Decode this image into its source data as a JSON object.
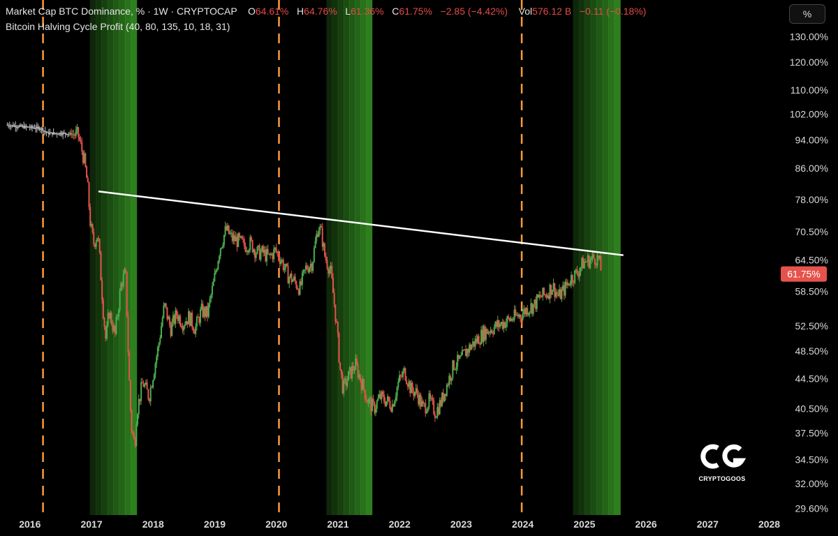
{
  "header": {
    "symbol": "Market Cap BTC Dominance, % · 1W · CRYPTOCAP",
    "o_label": "O",
    "o_value": "64.61%",
    "h_label": "H",
    "h_value": "64.76%",
    "l_label": "L",
    "l_value": "61.36%",
    "c_label": "C",
    "c_value": "61.75%",
    "change": "−2.85 (−4.42%)",
    "vol_label": "Vol",
    "vol_value": "576.12 B",
    "vol_change": "−0.11 (−0.18%)",
    "indicator": "Bitcoin Halving Cycle Profit (40, 80, 135, 10, 18, 31)"
  },
  "scale_button": "%",
  "logo": {
    "name": "CRYPTOGOOS",
    "mark": "CG"
  },
  "colors": {
    "background": "#000000",
    "up": "#4caf50",
    "down": "#e5534b",
    "halving_line": "#ff9a3c",
    "trendline": "#ffffff",
    "profit_zone": "#3fae2a",
    "last_price_badge": "#e5534b"
  },
  "chart_data": {
    "type": "line",
    "title": "",
    "xlabel": "",
    "ylabel": "",
    "y_scale": "log",
    "xlim": [
      2015.9,
      2028.3
    ],
    "ylim": [
      29.0,
      133.0
    ],
    "y_ticks": [
      "130.00%",
      "120.00%",
      "110.00%",
      "102.00%",
      "94.00%",
      "86.00%",
      "78.00%",
      "70.50%",
      "64.50%",
      "58.50%",
      "52.50%",
      "48.50%",
      "44.50%",
      "40.50%",
      "37.50%",
      "34.50%",
      "32.00%",
      "29.60%"
    ],
    "y_tick_values": [
      130,
      120,
      110,
      102,
      94,
      86,
      78,
      70.5,
      64.5,
      58.5,
      52.5,
      48.5,
      44.5,
      40.5,
      37.5,
      34.5,
      32,
      29.6
    ],
    "x_ticks": [
      "2016",
      "2017",
      "2018",
      "2019",
      "2020",
      "2021",
      "2022",
      "2023",
      "2024",
      "2025",
      "2026",
      "2027",
      "2028"
    ],
    "x_tick_values": [
      2016,
      2017,
      2018,
      2019,
      2020,
      2021,
      2022,
      2023,
      2024,
      2025,
      2026,
      2027,
      2028
    ],
    "last_price_label": "61.75%",
    "last_price": 61.75,
    "halving_dates": [
      2016.53,
      2020.36,
      2024.3
    ],
    "profit_zones": [
      {
        "start": 2017.29,
        "end": 2018.05
      },
      {
        "start": 2021.13,
        "end": 2021.87
      },
      {
        "start": 2025.13,
        "end": 2025.9
      }
    ],
    "trendline": {
      "x": [
        2017.43,
        2025.95
      ],
      "y": [
        80.0,
        65.5
      ]
    },
    "series": [
      {
        "x": [
          2015.95,
          2016.2,
          2016.5,
          2016.6,
          2016.9,
          2017.1,
          2017.2,
          2017.25,
          2017.3,
          2017.35,
          2017.42,
          2017.5,
          2017.55,
          2017.6,
          2017.7,
          2017.8,
          2017.87,
          2017.92,
          2017.96,
          2018.02,
          2018.05,
          2018.15,
          2018.25,
          2018.4,
          2018.5,
          2018.6,
          2018.7,
          2018.8,
          2018.9,
          2019.0,
          2019.1,
          2019.2,
          2019.3,
          2019.4,
          2019.5,
          2019.6,
          2019.7,
          2019.8,
          2019.9,
          2020.0,
          2020.1,
          2020.2,
          2020.3,
          2020.4,
          2020.5,
          2020.6,
          2020.7,
          2020.8,
          2020.9,
          2021.0,
          2021.05,
          2021.1,
          2021.2,
          2021.3,
          2021.35,
          2021.4,
          2021.5,
          2021.6,
          2021.7,
          2021.8,
          2021.9,
          2022.0,
          2022.1,
          2022.2,
          2022.3,
          2022.4,
          2022.5,
          2022.6,
          2022.7,
          2022.8,
          2022.9,
          2023.0,
          2023.1,
          2023.2,
          2023.3,
          2023.4,
          2023.5,
          2023.6,
          2023.7,
          2023.8,
          2023.9,
          2024.0,
          2024.1,
          2024.2,
          2024.3,
          2024.4,
          2024.5,
          2024.6,
          2024.7,
          2024.8,
          2024.9,
          2025.0,
          2025.1,
          2025.2,
          2025.3,
          2025.4,
          2025.5,
          2025.55,
          2025.6
        ],
        "values": [
          98.5,
          98.0,
          97.5,
          96.0,
          96.0,
          95.5,
          88.0,
          82.0,
          72.0,
          68.0,
          70.0,
          56.0,
          50.0,
          55.0,
          51.0,
          60.0,
          62.0,
          46.0,
          38.5,
          36.0,
          40.0,
          44.0,
          42.0,
          49.0,
          56.0,
          52.0,
          54.5,
          53.0,
          54.0,
          52.0,
          55.0,
          54.5,
          60.0,
          67.0,
          71.0,
          69.0,
          68.5,
          67.5,
          68.0,
          66.0,
          66.0,
          65.0,
          66.5,
          64.5,
          61.5,
          60.5,
          59.0,
          63.0,
          64.0,
          72.0,
          70.0,
          65.5,
          62.0,
          52.0,
          46.0,
          43.0,
          45.0,
          46.5,
          44.0,
          41.5,
          40.5,
          42.0,
          41.5,
          41.0,
          44.0,
          45.5,
          43.0,
          42.5,
          40.5,
          41.5,
          40.0,
          41.5,
          44.0,
          46.5,
          47.0,
          48.5,
          49.5,
          50.5,
          51.5,
          52.0,
          52.5,
          53.0,
          53.5,
          54.0,
          54.5,
          55.5,
          56.0,
          57.5,
          58.0,
          59.5,
          57.5,
          59.0,
          61.0,
          62.0,
          64.0,
          64.5,
          65.0,
          64.6,
          61.75
        ]
      }
    ]
  }
}
